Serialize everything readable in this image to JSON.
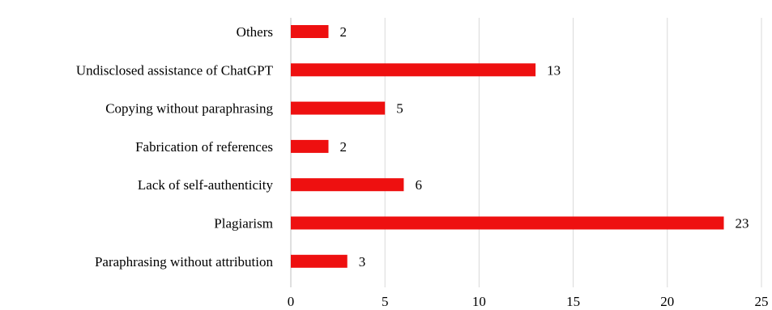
{
  "chart_data": {
    "type": "bar",
    "orientation": "horizontal",
    "categories": [
      "Others",
      "Undisclosed assistance of ChatGPT",
      "Copying without paraphrasing",
      "Fabrication of references",
      "Lack of self-authenticity",
      "Plagiarism",
      "Paraphrasing without attribution"
    ],
    "values": [
      2,
      13,
      5,
      2,
      6,
      23,
      3
    ],
    "xlim": [
      0,
      25
    ],
    "xticks": [
      "0",
      "5",
      "10",
      "15",
      "20",
      "25"
    ],
    "grid": true,
    "bar_color": "#ee1010",
    "title": "",
    "xlabel": "",
    "ylabel": ""
  }
}
